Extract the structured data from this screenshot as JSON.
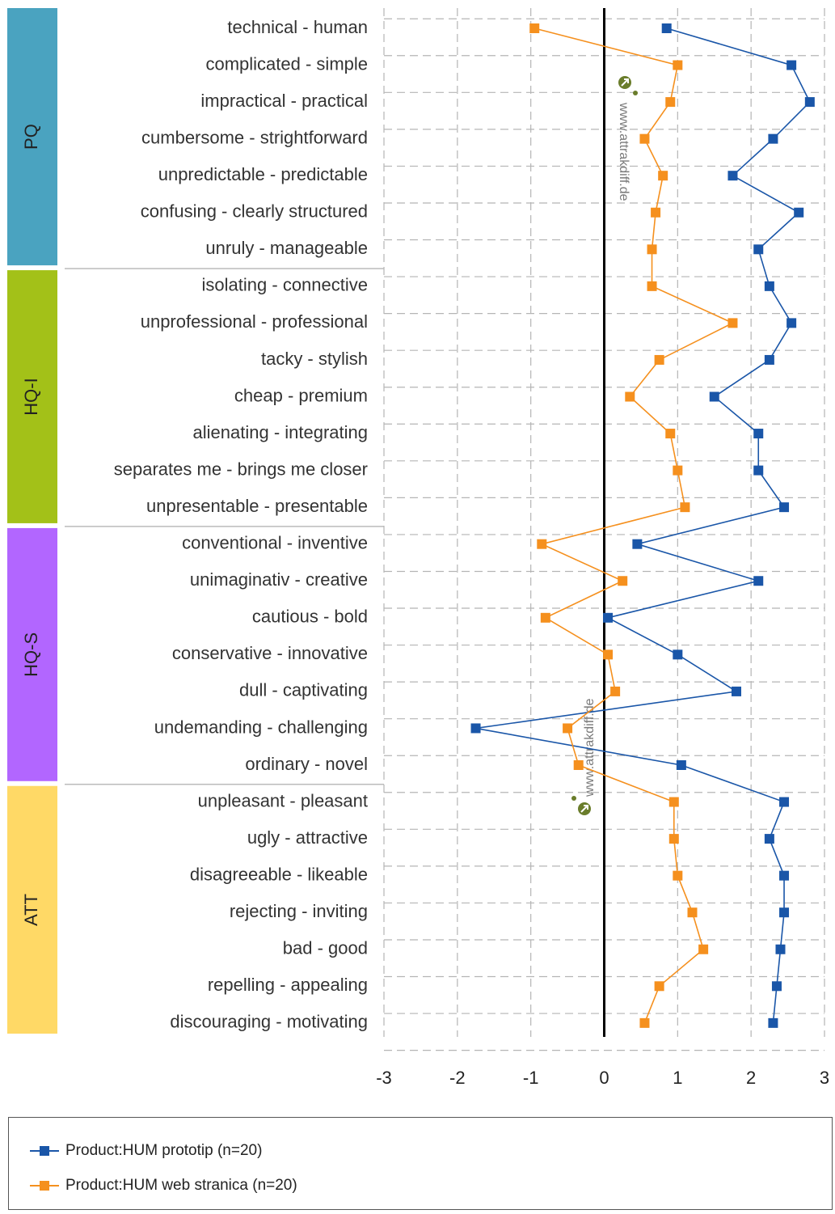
{
  "chart_data": {
    "type": "line",
    "orientation": "horizontal",
    "x_ticks": [
      "-3",
      "-2",
      "-1",
      "0",
      "1",
      "2",
      "3"
    ],
    "xlim": [
      -3,
      3
    ],
    "grid": true,
    "legend_position": "bottom",
    "groups": [
      {
        "name": "PQ",
        "color": "#4aa3c0",
        "count": 7
      },
      {
        "name": "HQ-I",
        "color": "#a3c118",
        "count": 7
      },
      {
        "name": "HQ-S",
        "color": "#b266ff",
        "count": 7
      },
      {
        "name": "ATT",
        "color": "#ffd966",
        "count": 7
      }
    ],
    "categories": [
      "technical - human",
      "complicated - simple",
      "impractical - practical",
      "cumbersome - strightforward",
      "unpredictable - predictable",
      "confusing - clearly structured",
      "unruly - manageable",
      "isolating - connective",
      "unprofessional - professional",
      "tacky - stylish",
      "cheap - premium",
      "alienating - integrating",
      "separates me - brings me closer",
      "unpresentable - presentable",
      "conventional - inventive",
      "unimaginativ - creative",
      "cautious - bold",
      "conservative - innovative",
      "dull - captivating",
      "undemanding - challenging",
      "ordinary - novel",
      "unpleasant - pleasant",
      "ugly - attractive",
      "disagreeable - likeable",
      "rejecting - inviting",
      "bad - good",
      "repelling - appealing",
      "discouraging - motivating"
    ],
    "series": [
      {
        "name": "Product:HUM prototip  (n=20)",
        "color": "#1a56a8",
        "values": [
          0.85,
          2.55,
          2.8,
          2.3,
          1.75,
          2.65,
          2.1,
          2.25,
          2.55,
          2.25,
          1.5,
          2.1,
          2.1,
          2.45,
          0.45,
          2.1,
          0.05,
          1.0,
          1.8,
          -1.75,
          1.05,
          2.45,
          2.25,
          2.45,
          2.45,
          2.4,
          2.35,
          2.3
        ]
      },
      {
        "name": "Product:HUM web stranica  (n=20)",
        "color": "#f5901e",
        "values": [
          -0.95,
          1.0,
          0.9,
          0.55,
          0.8,
          0.7,
          0.65,
          0.65,
          1.75,
          0.75,
          0.35,
          0.9,
          1.0,
          1.1,
          -0.85,
          0.25,
          -0.8,
          0.05,
          0.15,
          -0.5,
          -0.35,
          0.95,
          0.95,
          1.0,
          1.2,
          1.35,
          0.75,
          0.55
        ]
      }
    ]
  },
  "watermark": {
    "text": "www.attrakdiff.de",
    "icon": "attrakdiff-logo-icon",
    "color": "#6a7d2b"
  }
}
